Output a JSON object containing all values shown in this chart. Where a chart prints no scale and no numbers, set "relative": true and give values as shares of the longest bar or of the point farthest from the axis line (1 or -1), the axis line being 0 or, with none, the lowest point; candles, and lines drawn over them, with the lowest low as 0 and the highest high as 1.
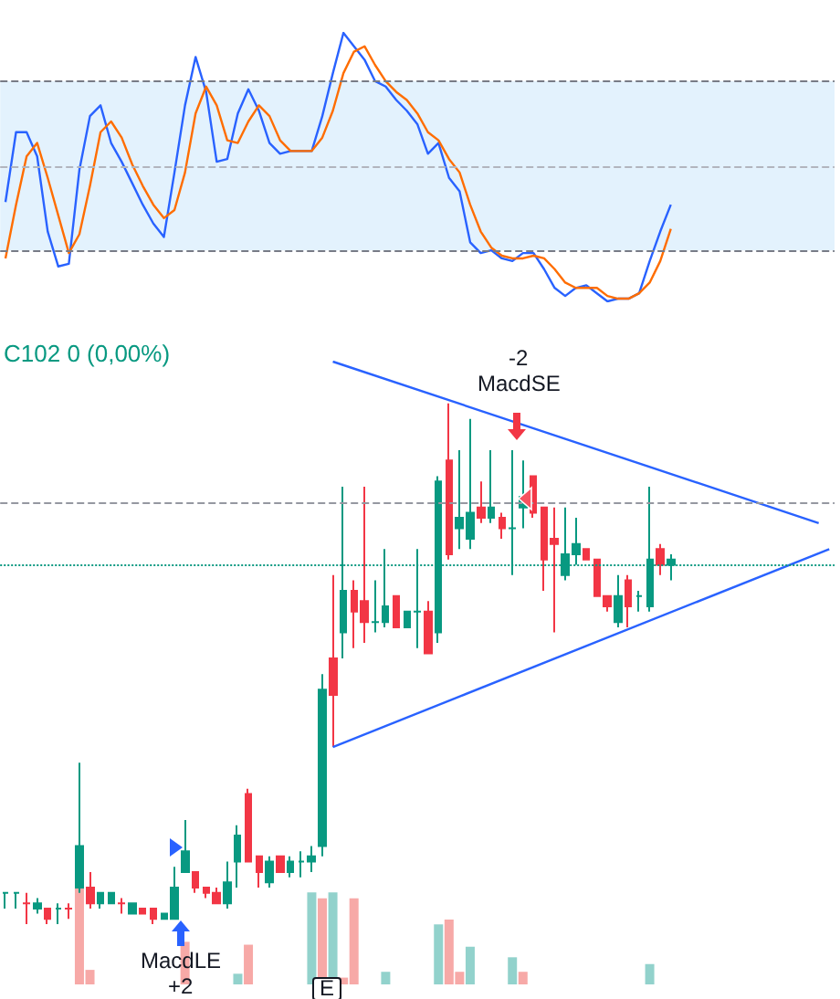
{
  "chart_data": [
    {
      "type": "line",
      "relative": true,
      "marker": "none",
      "categories": [
        null,
        null,
        null,
        null,
        null,
        null,
        null,
        null,
        null,
        null,
        null,
        null,
        null,
        null,
        null,
        null,
        null,
        null,
        null,
        null,
        null,
        null,
        null,
        null,
        null,
        null,
        null,
        null,
        null,
        null,
        null,
        null,
        null,
        null,
        null,
        null,
        null,
        null,
        null,
        null,
        null,
        null,
        null,
        null,
        null,
        null,
        null,
        null,
        null,
        null,
        null,
        null,
        null,
        null,
        null,
        null,
        null,
        null,
        null,
        null,
        null,
        null,
        null,
        null,
        null,
        null,
        null,
        null,
        null,
        null,
        null,
        null,
        null,
        null,
        null,
        null,
        null,
        null,
        null
      ],
      "series": [
        {
          "color": "#2962ff",
          "values": [
            0.37,
            0.63,
            0.63,
            0.54,
            0.26,
            0.13,
            0.14,
            0.49,
            0.69,
            0.73,
            0.59,
            0.52,
            0.44,
            0.36,
            0.29,
            0.24,
            0.48,
            0.73,
            0.91,
            0.78,
            0.52,
            0.53,
            0.7,
            0.79,
            0.71,
            0.59,
            0.55,
            0.56,
            0.56,
            0.56,
            0.69,
            0.85,
            1.0,
            0.95,
            0.9,
            0.82,
            0.8,
            0.75,
            0.71,
            0.66,
            0.55,
            0.59,
            0.46,
            0.41,
            0.22,
            0.18,
            0.19,
            0.16,
            0.15,
            0.18,
            0.18,
            0.12,
            0.05,
            0.02,
            0.05,
            0.06,
            0.03,
            0,
            0.01,
            0.01,
            0.03,
            0.15,
            0.26,
            0.36,
            null,
            null,
            null,
            null,
            null,
            null,
            null,
            null,
            null,
            null,
            null,
            null,
            null,
            null,
            null
          ]
        },
        {
          "color": "#ff6d00",
          "values": [
            0.16,
            0.36,
            0.54,
            0.59,
            0.46,
            0.32,
            0.18,
            0.25,
            0.43,
            0.63,
            0.67,
            0.61,
            0.51,
            0.43,
            0.36,
            0.31,
            0.34,
            0.48,
            0.7,
            0.8,
            0.73,
            0.6,
            0.59,
            0.67,
            0.73,
            0.69,
            0.6,
            0.56,
            0.56,
            0.56,
            0.61,
            0.71,
            0.85,
            0.93,
            0.95,
            0.88,
            0.82,
            0.78,
            0.75,
            0.7,
            0.63,
            0.6,
            0.53,
            0.48,
            0.36,
            0.26,
            0.2,
            0.17,
            0.16,
            0.16,
            0.17,
            0.16,
            0.12,
            0.07,
            0.05,
            0.05,
            0.05,
            0.02,
            0.01,
            0.01,
            0.03,
            0.07,
            0.15,
            0.27,
            null,
            null,
            null,
            null,
            null,
            null,
            null,
            null,
            null,
            null,
            null,
            null,
            null,
            null,
            null
          ]
        }
      ],
      "ref_lines": [
        {
          "axis": "y",
          "value": 0.82,
          "color": "#787b86",
          "line_style": "dashed"
        },
        {
          "axis": "y",
          "value": 0.5,
          "color": "#b2b5be",
          "line_style": "dashed"
        },
        {
          "axis": "y",
          "value": 0.19,
          "color": "#787b86",
          "line_style": "dashed"
        }
      ],
      "bands": [
        {
          "axis": "y",
          "from": 0.19,
          "to": 0.82,
          "color": "#e3f2fd"
        }
      ]
    },
    {
      "type": "candlestick",
      "relative": true,
      "marker": "none",
      "categories": [
        null,
        null,
        null,
        null,
        null,
        null,
        null,
        null,
        null,
        null,
        null,
        null,
        null,
        null,
        null,
        null,
        null,
        null,
        null,
        null,
        null,
        null,
        null,
        null,
        null,
        null,
        null,
        null,
        null,
        null,
        null,
        null,
        null,
        null,
        null,
        null,
        null,
        null,
        null,
        null,
        null,
        null,
        null,
        null,
        null,
        null,
        null,
        null,
        null,
        null,
        null,
        null,
        null,
        null,
        null,
        null,
        null,
        null,
        null,
        null,
        null,
        null,
        null,
        null,
        null,
        null,
        null,
        null,
        null,
        null,
        null,
        null,
        null,
        null,
        null,
        null,
        null,
        null,
        null
      ],
      "ohlc": [
        [
          0.06,
          0.06,
          0.03,
          0.06
        ],
        [
          0.06,
          0.06,
          0.03,
          0.06
        ],
        [
          0.04,
          0.06,
          0,
          0.04
        ],
        [
          0.03,
          0.05,
          0.02,
          0.04
        ],
        [
          0.03,
          0.03,
          0.0,
          0.01
        ],
        [
          0.03,
          0.04,
          0,
          0.03
        ],
        [
          0.03,
          0.04,
          0.01,
          0.03
        ],
        [
          0.07,
          0.31,
          0.06,
          0.15
        ],
        [
          0.07,
          0.1,
          0.03,
          0.04
        ],
        [
          0.04,
          0.06,
          0.03,
          0.06
        ],
        [
          0.04,
          0.06,
          0.04,
          0.06
        ],
        [
          0.04,
          0.05,
          0.02,
          0.04
        ],
        [
          0.02,
          0.04,
          0.02,
          0.04
        ],
        [
          0.03,
          0.03,
          0.02,
          0.02
        ],
        [
          0.03,
          0.03,
          0.0,
          0.01
        ],
        [
          0.01,
          0.02,
          0.01,
          0.02
        ],
        [
          0.01,
          0.11,
          0.01,
          0.07
        ],
        [
          0.1,
          0.2,
          0.1,
          0.14
        ],
        [
          0.1,
          0.1,
          0.06,
          0.07
        ],
        [
          0.07,
          0.07,
          0.05,
          0.06
        ],
        [
          0.06,
          0.07,
          0.04,
          0.04
        ],
        [
          0.04,
          0.12,
          0.03,
          0.08
        ],
        [
          0.12,
          0.19,
          0.07,
          0.17
        ],
        [
          0.25,
          0.26,
          0.12,
          0.12
        ],
        [
          0.13,
          0.13,
          0.07,
          0.1
        ],
        [
          0.08,
          0.13,
          0.07,
          0.12
        ],
        [
          0.13,
          0.13,
          0.1,
          0.1
        ],
        [
          0.1,
          0.13,
          0.09,
          0.12
        ],
        [
          0.12,
          0.14,
          0.09,
          0.12
        ],
        [
          0.12,
          0.15,
          0.1,
          0.13
        ],
        [
          0.15,
          0.48,
          0.13,
          0.45
        ],
        [
          0.51,
          0.67,
          0.34,
          0.44
        ],
        [
          0.56,
          0.84,
          0.51,
          0.64
        ],
        [
          0.64,
          0.66,
          0.53,
          0.6
        ],
        [
          0.62,
          0.84,
          0.54,
          0.58
        ],
        [
          0.58,
          0.66,
          0.56,
          0.58
        ],
        [
          0.58,
          0.72,
          0.57,
          0.61
        ],
        [
          0.63,
          0.63,
          0.57,
          0.57
        ],
        [
          0.57,
          0.6,
          0.57,
          0.6
        ],
        [
          0.6,
          0.72,
          0.53,
          0.6
        ],
        [
          0.6,
          0.62,
          0.52,
          0.52
        ],
        [
          0.56,
          0.86,
          0.54,
          0.85
        ],
        [
          0.89,
          1.0,
          0.7,
          0.71
        ],
        [
          0.76,
          0.91,
          0.72,
          0.78
        ],
        [
          0.74,
          0.97,
          0.72,
          0.79
        ],
        [
          0.8,
          0.85,
          0.77,
          0.78
        ],
        [
          0.78,
          0.91,
          0.77,
          0.8
        ],
        [
          0.78,
          0.79,
          0.74,
          0.76
        ],
        [
          0.76,
          0.91,
          0.67,
          0.76
        ],
        [
          0.8,
          0.89,
          0.76,
          0.82
        ],
        [
          0.86,
          0.86,
          0.78,
          0.79
        ],
        [
          0.8,
          0.8,
          0.64,
          0.7
        ],
        [
          0.74,
          0.8,
          0.56,
          0.73
        ],
        [
          0.67,
          0.8,
          0.66,
          0.71
        ],
        [
          0.71,
          0.78,
          0.69,
          0.73
        ],
        [
          0.72,
          0.72,
          0.7,
          0.7
        ],
        [
          0.7,
          0.7,
          0.63,
          0.63
        ],
        [
          0.63,
          0.63,
          0.6,
          0.61
        ],
        [
          0.58,
          0.67,
          0.57,
          0.63
        ],
        [
          0.66,
          0.67,
          0.57,
          0.61
        ],
        [
          0.63,
          0.64,
          0.6,
          0.63
        ],
        [
          0.61,
          0.84,
          0.6,
          0.7
        ],
        [
          0.72,
          0.73,
          0.67,
          0.69
        ],
        [
          0.69,
          0.71,
          0.66,
          0.7
        ],
        null,
        null,
        null,
        null,
        null,
        null,
        null,
        null,
        null,
        null,
        null,
        null,
        null,
        null,
        null
      ],
      "colors": [
        "#089981",
        "#089981",
        "#f23645",
        "#089981",
        "#f23645",
        "#089981",
        "#f23645",
        "#089981",
        "#f23645",
        "#089981",
        "#089981",
        "#f23645",
        "#089981",
        "#f23645",
        "#f23645",
        "#089981",
        "#089981",
        "#089981",
        "#f23645",
        "#f23645",
        "#f23645",
        "#089981",
        "#089981",
        "#f23645",
        "#f23645",
        "#089981",
        "#f23645",
        "#089981",
        "#089981",
        "#089981",
        "#089981",
        "#f23645",
        "#089981",
        "#f23645",
        "#f23645",
        "#089981",
        "#089981",
        "#f23645",
        "#089981",
        "#089981",
        "#f23645",
        "#089981",
        "#f23645",
        "#089981",
        "#089981",
        "#f23645",
        "#089981",
        "#f23645",
        "#089981",
        "#089981",
        "#f23645",
        "#f23645",
        "#f23645",
        "#089981",
        "#089981",
        "#f23645",
        "#f23645",
        "#f23645",
        "#089981",
        "#f23645",
        "#089981",
        "#089981",
        "#f23645",
        "#089981",
        null,
        null,
        null,
        null,
        null,
        null,
        null,
        null,
        null,
        null,
        null,
        null,
        null,
        null,
        null
      ],
      "series": [
        {
          "type": "line",
          "color": "#2962ff",
          "values": [
            null,
            null,
            null,
            null,
            null,
            null,
            null,
            null,
            null,
            null,
            null,
            null,
            null,
            null,
            null,
            null,
            null,
            null,
            null,
            null,
            null,
            null,
            null,
            null,
            null,
            null,
            null,
            null,
            null,
            null,
            null,
            1.08,
            null,
            null,
            null,
            null,
            null,
            null,
            null,
            null,
            null,
            null,
            null,
            null,
            null,
            null,
            null,
            null,
            null,
            null,
            null,
            null,
            null,
            null,
            null,
            null,
            null,
            null,
            null,
            null,
            null,
            null,
            null,
            null,
            null,
            null,
            null,
            null,
            null,
            null,
            null,
            null,
            null,
            null,
            null,
            null,
            null,
            0.77,
            null
          ]
        },
        {
          "type": "line",
          "color": "#2962ff",
          "values": [
            null,
            null,
            null,
            null,
            null,
            null,
            null,
            null,
            null,
            null,
            null,
            null,
            null,
            null,
            null,
            null,
            null,
            null,
            null,
            null,
            null,
            null,
            null,
            null,
            null,
            null,
            null,
            null,
            null,
            null,
            null,
            0.34,
            null,
            null,
            null,
            null,
            null,
            null,
            null,
            null,
            null,
            null,
            null,
            null,
            null,
            null,
            null,
            null,
            null,
            null,
            null,
            null,
            null,
            null,
            null,
            null,
            null,
            null,
            null,
            null,
            null,
            null,
            null,
            null,
            null,
            null,
            null,
            null,
            null,
            null,
            null,
            null,
            null,
            null,
            null,
            null,
            null,
            null,
            0.72
          ]
        }
      ],
      "ref_lines": [
        {
          "axis": "y",
          "value": 0.81,
          "color": "#9598a1",
          "line_style": "dashed"
        },
        {
          "axis": "y",
          "value": 0.69,
          "color": "#089981",
          "line_style": "dotted"
        }
      ],
      "annotations": [
        "C102 0 (0,00%)",
        "-2",
        "MacdSE",
        "MacdLE",
        "+2",
        "E"
      ]
    },
    {
      "type": "bar",
      "relative": true,
      "categories": [
        null,
        null,
        null,
        null,
        null,
        null,
        null,
        null,
        null,
        null,
        null,
        null,
        null,
        null,
        null,
        null,
        null,
        null,
        null,
        null,
        null,
        null,
        null,
        null,
        null,
        null,
        null,
        null,
        null,
        null,
        null,
        null,
        null,
        null,
        null,
        null,
        null,
        null,
        null,
        null,
        null,
        null,
        null,
        null,
        null,
        null,
        null,
        null,
        null,
        null,
        null,
        null,
        null,
        null,
        null,
        null,
        null,
        null,
        null,
        null,
        null,
        null,
        null,
        null,
        null,
        null,
        null,
        null,
        null,
        null,
        null,
        null,
        null,
        null,
        null,
        null,
        null,
        null,
        null
      ],
      "values": [
        null,
        null,
        null,
        null,
        null,
        null,
        null,
        1.0,
        0.15,
        null,
        null,
        null,
        null,
        null,
        null,
        null,
        null,
        0.44,
        null,
        null,
        null,
        null,
        0.11,
        0.41,
        null,
        null,
        null,
        null,
        null,
        0.95,
        0.89,
        0.95,
        0.07,
        0.89,
        null,
        null,
        0.13,
        null,
        null,
        null,
        null,
        0.62,
        0.67,
        0.13,
        0.39,
        null,
        null,
        null,
        0.28,
        0.13,
        null,
        null,
        null,
        null,
        null,
        null,
        null,
        null,
        null,
        null,
        null,
        0.21,
        null,
        null,
        null,
        null,
        null,
        null,
        null,
        null,
        null,
        null,
        null,
        null,
        null,
        null,
        null,
        null,
        null
      ],
      "colors": [
        null,
        null,
        null,
        null,
        null,
        null,
        null,
        "#f7a9a7",
        "#f7a9a7",
        null,
        null,
        null,
        null,
        null,
        null,
        null,
        null,
        "#f7a9a7",
        null,
        null,
        null,
        null,
        "#92d2cc",
        "#f7a9a7",
        null,
        null,
        null,
        null,
        null,
        "#92d2cc",
        "#f7a9a7",
        "#92d2cc",
        "#f7a9a7",
        "#f7a9a7",
        null,
        null,
        "#92d2cc",
        null,
        null,
        null,
        null,
        "#92d2cc",
        "#f7a9a7",
        "#f7a9a7",
        "#92d2cc",
        null,
        null,
        null,
        "#92d2cc",
        "#f7a9a7",
        null,
        null,
        null,
        null,
        null,
        null,
        null,
        null,
        null,
        null,
        null,
        "#92d2cc",
        null,
        null,
        null,
        null,
        null,
        null,
        null,
        null,
        null,
        null,
        null,
        null,
        null,
        null,
        null,
        null,
        null
      ]
    }
  ]
}
